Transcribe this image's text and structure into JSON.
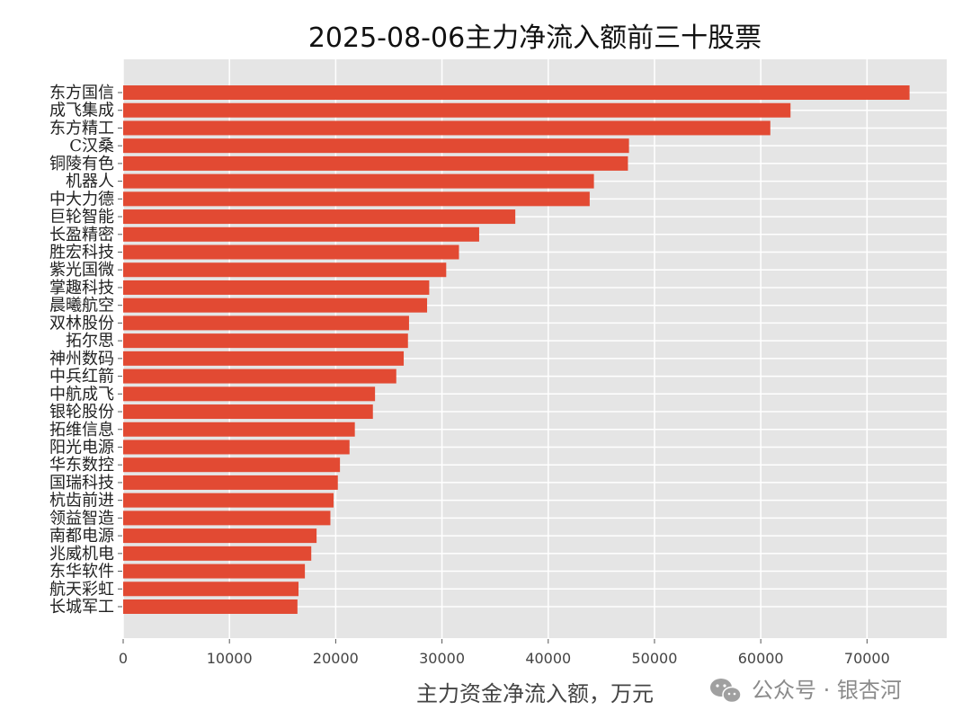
{
  "chart_data": {
    "type": "bar",
    "orientation": "horizontal",
    "title": "2025-08-06主力净流入额前三十股票",
    "xlabel": "主力资金净流入额，万元",
    "ylabel": "",
    "xlim": [
      0,
      77500
    ],
    "xticks": [
      0,
      10000,
      20000,
      30000,
      40000,
      50000,
      60000,
      70000
    ],
    "grid": true,
    "bar_color": "#e24a33",
    "background_color": "#e5e5e5",
    "categories": [
      "东方国信",
      "成飞集成",
      "东方精工",
      "C汉桑",
      "铜陵有色",
      "机器人",
      "中大力德",
      "巨轮智能",
      "长盈精密",
      "胜宏科技",
      "紫光国微",
      "掌趣科技",
      "晨曦航空",
      "双林股份",
      "拓尔思",
      "神州数码",
      "中兵红箭",
      "中航成飞",
      "银轮股份",
      "拓维信息",
      "阳光电源",
      "华东数控",
      "国瑞科技",
      "杭齿前进",
      "领益智造",
      "南都电源",
      "兆威机电",
      "东华软件",
      "航天彩虹",
      "长城军工"
    ],
    "values": [
      74000,
      62800,
      60900,
      47600,
      47500,
      44300,
      43900,
      36900,
      33500,
      31600,
      30400,
      28800,
      28600,
      26900,
      26800,
      26400,
      25700,
      23700,
      23500,
      21800,
      21300,
      20400,
      20200,
      19800,
      19500,
      18200,
      17700,
      17100,
      16500,
      16400
    ]
  },
  "watermark": {
    "text": "公众号 · 银杏河",
    "icon": "wechat-icon"
  }
}
